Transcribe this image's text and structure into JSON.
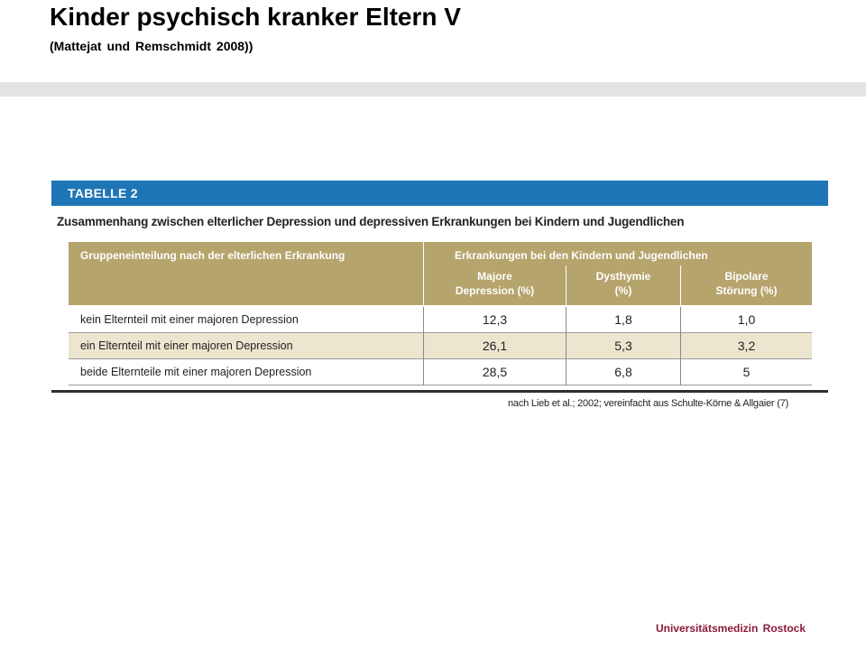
{
  "slide": {
    "title": "Kinder psychisch kranker Eltern V",
    "subtitle": "(Mattejat und Remschmidt 2008))"
  },
  "table": {
    "label": "TABELLE 2",
    "caption": "Zusammenhang zwischen elterlicher Depression und depressiven Erkrankungen bei Kindern und Jugendlichen",
    "group_header_left": "Gruppeneinteilung nach der elterlichen Erkrankung",
    "group_header_right": "Erkrankungen bei den Kindern und Jugendlichen",
    "columns": [
      {
        "line1": "Majore",
        "line2": "Depression (%)"
      },
      {
        "line1": "Dysthymie",
        "line2": "(%)"
      },
      {
        "line1": "Bipolare",
        "line2": "Störung (%)"
      }
    ],
    "rows": [
      {
        "label": "kein Elternteil mit einer majoren Depression",
        "values": [
          "12,3",
          "1,8",
          "1,0"
        ]
      },
      {
        "label": "ein Elternteil mit einer majoren Depression",
        "values": [
          "26,1",
          "5,3",
          "3,2"
        ]
      },
      {
        "label": "beide Elternteile mit einer majoren Depression",
        "values": [
          "28,5",
          "6,8",
          "5"
        ]
      }
    ],
    "source": "nach Lieb et al.; 2002; vereinfacht aus Schulte-Körne & Allgaier (7)"
  },
  "footer": {
    "brand": "Universitätsmedizin Rostock"
  },
  "colors": {
    "table_bar": "#1f76b6",
    "header_fill": "#b5a46c",
    "row_shade": "#ece6cf",
    "brand": "#8b1a3a"
  }
}
